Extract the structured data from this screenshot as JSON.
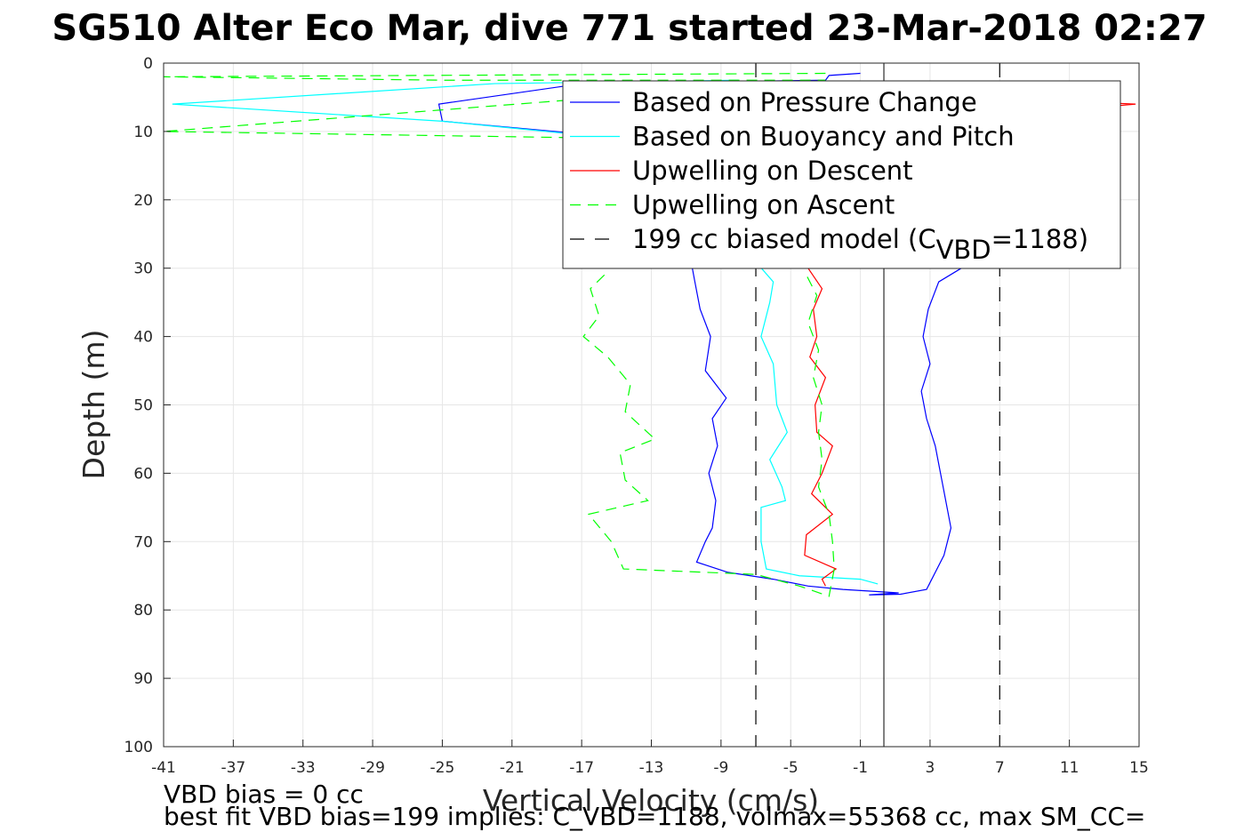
{
  "chart_data": {
    "type": "line",
    "title": "SG510 Alter Eco Mar, dive 771 started 23-Mar-2018 02:27",
    "xlabel": "Vertical Velocity (cm/s)",
    "ylabel": "Depth (m)",
    "xlim": [
      -41,
      15
    ],
    "ylim": [
      0,
      100
    ],
    "y_reversed": true,
    "grid": true,
    "legend_placement": "top-right",
    "xticks": [
      "-41",
      "-37",
      "-33",
      "-29",
      "-25",
      "-21",
      "-17",
      "-13",
      "-9",
      "-5",
      "-1",
      "3",
      "7",
      "11",
      "15"
    ],
    "yticks": [
      "0",
      "10",
      "20",
      "30",
      "40",
      "50",
      "60",
      "70",
      "80",
      "90",
      "100"
    ],
    "series": [
      {
        "name": "Based on Pressure Change",
        "color": "#0000ff",
        "dash": "solid",
        "points": [
          [
            -1,
            1.5
          ],
          [
            -2.8,
            1.8
          ],
          [
            -3,
            2.5
          ],
          [
            -17,
            3
          ],
          [
            -25.2,
            6
          ],
          [
            -25,
            8.5
          ],
          [
            -12,
            11.5
          ],
          [
            -10.5,
            32
          ],
          [
            -10.2,
            36
          ],
          [
            -9.6,
            40
          ],
          [
            -9.9,
            45
          ],
          [
            -8.7,
            49
          ],
          [
            -9.5,
            52
          ],
          [
            -9.2,
            56
          ],
          [
            -9.7,
            60
          ],
          [
            -9.3,
            64
          ],
          [
            -9.5,
            68
          ],
          [
            -9.9,
            70
          ],
          [
            -10.4,
            73
          ],
          [
            -8.6,
            74.5
          ],
          [
            -6,
            75.5
          ],
          [
            -4,
            76.5
          ],
          [
            -2,
            77
          ],
          [
            1.2,
            77.5
          ],
          [
            -0.5,
            77.8
          ],
          [
            1.3,
            77.7
          ],
          [
            2.8,
            77
          ],
          [
            3,
            76
          ],
          [
            3.8,
            72
          ],
          [
            4.2,
            68
          ],
          [
            3.9,
            64
          ],
          [
            3.6,
            60
          ],
          [
            3.3,
            56
          ],
          [
            2.8,
            52
          ],
          [
            2.5,
            48
          ],
          [
            3,
            44
          ],
          [
            2.6,
            40
          ],
          [
            2.9,
            36
          ],
          [
            3.5,
            32
          ],
          [
            4.8,
            30
          ],
          [
            5.2,
            26
          ]
        ]
      },
      {
        "name": "Based on Buoyancy and Pitch",
        "color": "#00ffff",
        "dash": "solid",
        "points": [
          [
            -8,
            2.5
          ],
          [
            -22,
            3
          ],
          [
            -40.5,
            6
          ],
          [
            -25,
            8.5
          ],
          [
            -13,
            11.5
          ],
          [
            -6,
            32
          ],
          [
            -6.2,
            35
          ],
          [
            -6.7,
            40
          ],
          [
            -6,
            44
          ],
          [
            -5.8,
            50
          ],
          [
            -5.2,
            54
          ],
          [
            -6.2,
            58
          ],
          [
            -5.5,
            62
          ],
          [
            -5.3,
            64
          ],
          [
            -6.7,
            65
          ],
          [
            -6.7,
            70
          ],
          [
            -6.4,
            74
          ],
          [
            -4.5,
            75
          ],
          [
            -1,
            75.5
          ],
          [
            0,
            76.2
          ]
        ]
      },
      {
        "name": "Upwelling on Descent",
        "color": "#ff0000",
        "dash": "solid",
        "points": [
          [
            13,
            5.8
          ],
          [
            14.8,
            6
          ],
          [
            13,
            6.4
          ],
          [
            -4,
            30
          ],
          [
            -3.2,
            33
          ],
          [
            -3.7,
            36
          ],
          [
            -3.5,
            40
          ],
          [
            -3.9,
            43
          ],
          [
            -3,
            46
          ],
          [
            -3.6,
            50
          ],
          [
            -3.5,
            54
          ],
          [
            -2.6,
            56
          ],
          [
            -3.2,
            60
          ],
          [
            -3.8,
            63
          ],
          [
            -2.6,
            66
          ],
          [
            -4.1,
            69
          ],
          [
            -4.2,
            72
          ],
          [
            -2.4,
            74
          ],
          [
            -3.2,
            75.5
          ],
          [
            -3,
            76.5
          ]
        ]
      },
      {
        "name": "Upwelling on Ascent",
        "color": "#00ff00",
        "dash": "dash",
        "points": [
          [
            -3,
            1.5
          ],
          [
            -41,
            2
          ],
          [
            -25,
            2.5
          ],
          [
            -3,
            2.5
          ],
          [
            -41,
            10
          ],
          [
            -15,
            11
          ],
          [
            -13,
            12
          ],
          [
            -15.7,
            31
          ],
          [
            -16.5,
            33
          ],
          [
            -16,
            37
          ],
          [
            -16.9,
            40
          ],
          [
            -15.5,
            43
          ],
          [
            -14.2,
            47
          ],
          [
            -14.5,
            51
          ],
          [
            -12.8,
            55
          ],
          [
            -14.8,
            57
          ],
          [
            -14.5,
            61
          ],
          [
            -13.2,
            64
          ],
          [
            -16.6,
            66
          ],
          [
            -15.3,
            70
          ],
          [
            -14.6,
            74
          ],
          [
            -7,
            74.8
          ],
          [
            -4.5,
            76.5
          ],
          [
            -2.8,
            78
          ],
          [
            -2.5,
            74
          ],
          [
            -2.6,
            70
          ],
          [
            -2.8,
            66
          ],
          [
            -3.4,
            62
          ],
          [
            -3.2,
            58
          ],
          [
            -3.4,
            54
          ],
          [
            -3.2,
            50
          ],
          [
            -3.7,
            46
          ],
          [
            -3.4,
            42
          ],
          [
            -4,
            38
          ],
          [
            -3.5,
            34
          ],
          [
            -4.1,
            31
          ]
        ]
      },
      {
        "name": "199 cc biased model (C",
        "name_sub": "VBD",
        "name_tail": "=1188)",
        "color": "#000000",
        "dash": "longdash",
        "lines": [
          -7,
          7
        ]
      }
    ],
    "reference_line": {
      "x": 0.35,
      "color": "#000000"
    },
    "footer_lines": [
      "VBD bias = 0 cc",
      "best fit VBD bias=199 implies: C_VBD=1188, volmax=55368 cc, max SM_CC="
    ]
  }
}
